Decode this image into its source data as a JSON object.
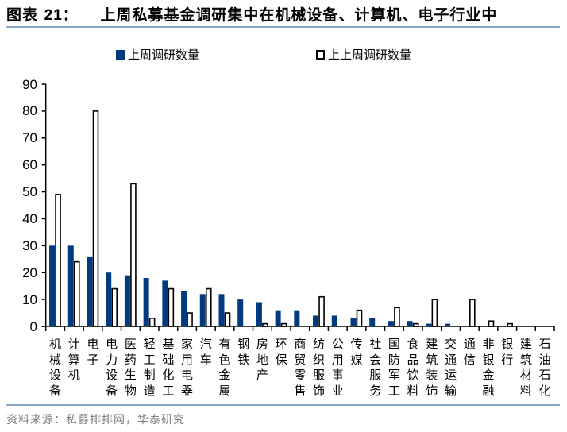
{
  "header": {
    "figure_label": "图表",
    "figure_number": "21",
    "figure_sep": "：",
    "title": "上周私募基金调研集中在机械设备、计算机、电子行业中"
  },
  "legend": {
    "items": [
      {
        "label": "上周调研数量",
        "style": "filled",
        "color": "#003a80"
      },
      {
        "label": "上上周调研数量",
        "style": "outline",
        "color": "#000000"
      }
    ]
  },
  "footer": {
    "source": "资料来源：私募排排网，华泰研究"
  },
  "colors": {
    "series1": "#003a80",
    "series2_fill": "#ffffff",
    "series2_stroke": "#000000",
    "rule": "#8aa8c4",
    "source_text": "#7a7a7a"
  },
  "chart_data": {
    "type": "bar",
    "title": "上周私募基金调研集中在机械设备、计算机、电子行业中",
    "xlabel": "",
    "ylabel": "",
    "ylim": [
      0,
      90
    ],
    "yticks": [
      0,
      10,
      20,
      30,
      40,
      50,
      60,
      70,
      80,
      90
    ],
    "grid": false,
    "legend_position": "top",
    "categories": [
      "机械设备",
      "计算机",
      "电子",
      "电力设备",
      "医药生物",
      "轻工制造",
      "基础化工",
      "家用电器",
      "汽车",
      "有色金属",
      "钢铁",
      "房地产",
      "环保",
      "商贸零售",
      "纺织服饰",
      "公用事业",
      "传媒",
      "社会服务",
      "国防军工",
      "食品饮料",
      "建筑装饰",
      "交通运输",
      "通信",
      "非银金融",
      "银行",
      "建筑材料",
      "石油石化"
    ],
    "series": [
      {
        "name": "上周调研数量",
        "values": [
          30,
          30,
          26,
          20,
          19,
          18,
          17,
          13,
          12,
          12,
          10,
          9,
          6,
          6,
          4,
          4,
          3,
          3,
          2,
          2,
          1,
          1,
          0,
          0,
          0,
          0,
          0
        ]
      },
      {
        "name": "上上周调研数量",
        "values": [
          49,
          24,
          80,
          14,
          53,
          3,
          14,
          5,
          14,
          5,
          0,
          1,
          1,
          0,
          11,
          0,
          6,
          0,
          7,
          1,
          10,
          0,
          10,
          2,
          1,
          0,
          0
        ]
      }
    ]
  }
}
